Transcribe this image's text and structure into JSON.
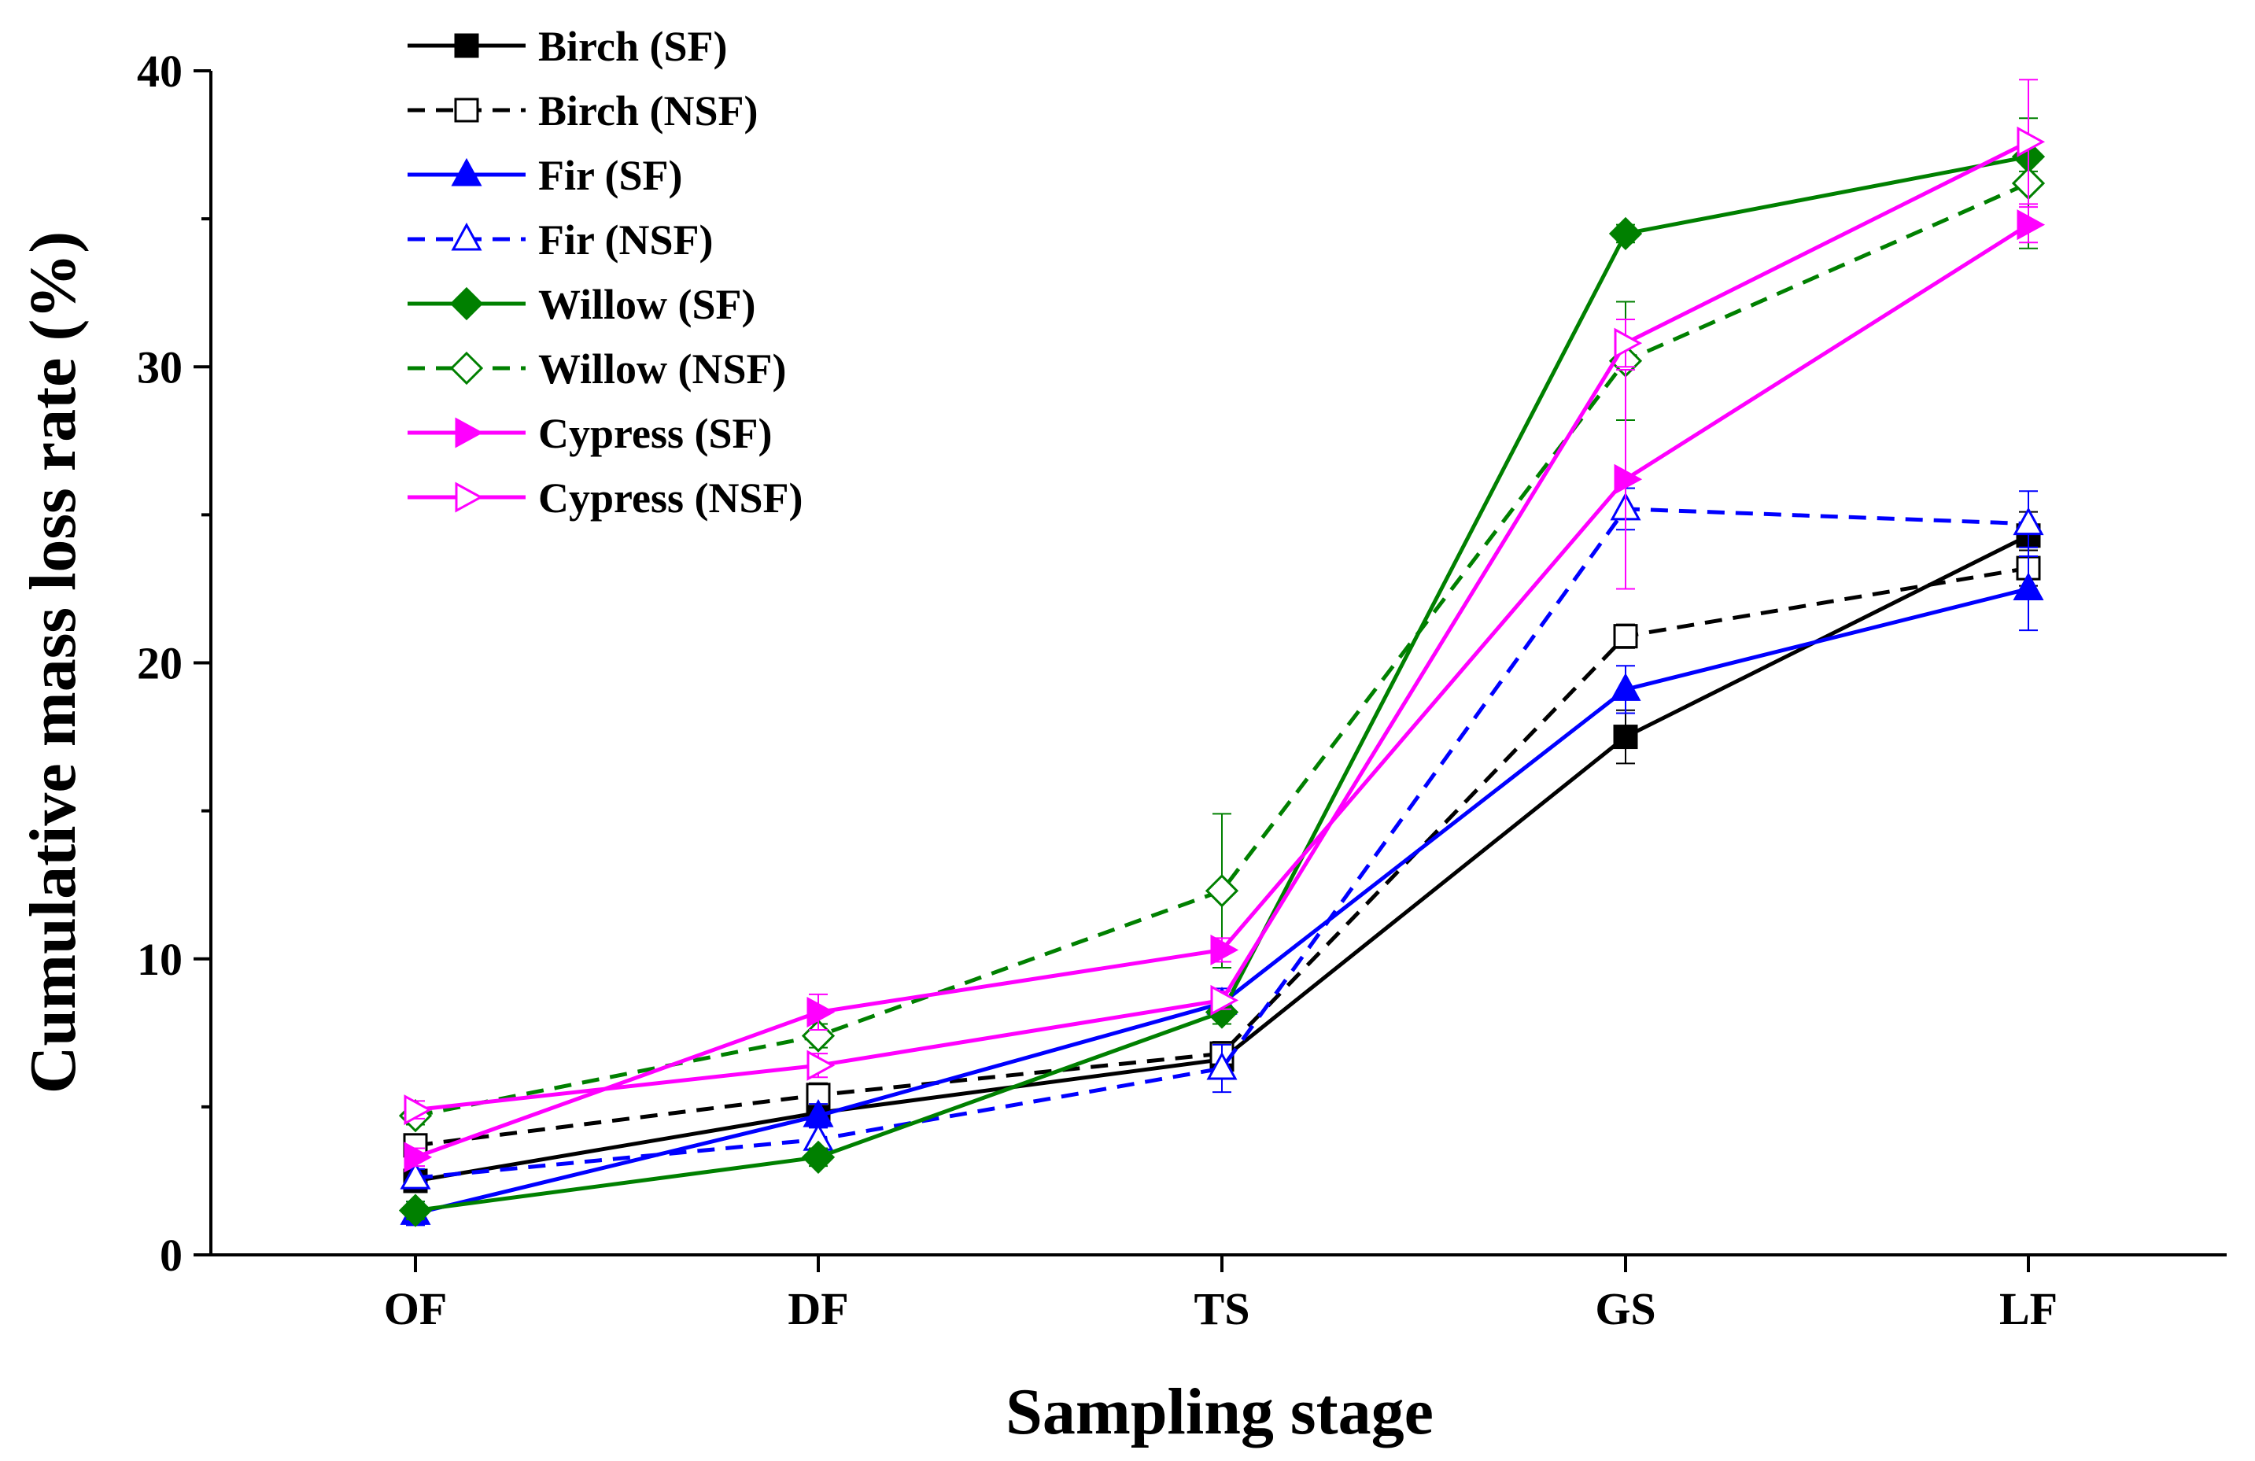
{
  "chart_data": {
    "type": "line",
    "title": "",
    "xlabel": "Sampling stage",
    "ylabel": "Cumulative mass loss rate (%)",
    "categories": [
      "OF",
      "DF",
      "TS",
      "GS",
      "LF"
    ],
    "ylim": [
      0,
      40
    ],
    "yticks": [
      "0",
      "10",
      "20",
      "30",
      "40"
    ],
    "grid": false,
    "legend_position": "top-left",
    "series": [
      {
        "name": "Birch (SF)",
        "color": "#000000",
        "dash": "solid",
        "marker": "square",
        "filled": true,
        "values": [
          2.5,
          4.8,
          6.6,
          17.5,
          24.3
        ],
        "errors": [
          0.3,
          0.4,
          0.4,
          0.9,
          0.8
        ]
      },
      {
        "name": "Birch (NSF)",
        "color": "#000000",
        "dash": "dashed",
        "marker": "square",
        "filled": false,
        "values": [
          3.7,
          5.4,
          6.8,
          20.9,
          23.2
        ],
        "errors": [
          0.3,
          0.4,
          0.4,
          0.4,
          0.6
        ]
      },
      {
        "name": "Fir (SF)",
        "color": "#0000ff",
        "dash": "solid",
        "marker": "triangle-up",
        "filled": true,
        "values": [
          1.4,
          4.7,
          8.5,
          19.1,
          22.5
        ],
        "errors": [
          0.4,
          0.4,
          0.5,
          0.8,
          1.4
        ]
      },
      {
        "name": "Fir (NSF)",
        "color": "#0000ff",
        "dash": "dashed",
        "marker": "triangle-up",
        "filled": false,
        "values": [
          2.6,
          3.9,
          6.3,
          25.2,
          24.7
        ],
        "errors": [
          0.3,
          0.4,
          0.8,
          0.7,
          1.1
        ]
      },
      {
        "name": "Willow (SF)",
        "color": "#008000",
        "dash": "solid",
        "marker": "diamond",
        "filled": true,
        "values": [
          1.5,
          3.3,
          8.2,
          34.5,
          37.1
        ],
        "errors": [
          0.3,
          0.3,
          0.4,
          0.3,
          0.5
        ]
      },
      {
        "name": "Willow (NSF)",
        "color": "#008000",
        "dash": "dashed",
        "marker": "diamond",
        "filled": false,
        "values": [
          4.7,
          7.4,
          12.3,
          30.2,
          36.2
        ],
        "errors": [
          0.3,
          0.4,
          2.6,
          2.0,
          2.2
        ]
      },
      {
        "name": "Cypress (SF)",
        "color": "#ff00ff",
        "dash": "solid",
        "marker": "triangle-right",
        "filled": true,
        "values": [
          3.3,
          8.2,
          10.3,
          26.2,
          34.8
        ],
        "errors": [
          0.3,
          0.6,
          0.4,
          3.7,
          0.6
        ]
      },
      {
        "name": "Cypress (NSF)",
        "color": "#ff00ff",
        "dash": "solid",
        "marker": "triangle-right",
        "filled": false,
        "values": [
          4.9,
          6.4,
          8.6,
          30.8,
          37.6
        ],
        "errors": [
          0.3,
          0.4,
          0.3,
          0.8,
          2.1
        ]
      }
    ]
  }
}
